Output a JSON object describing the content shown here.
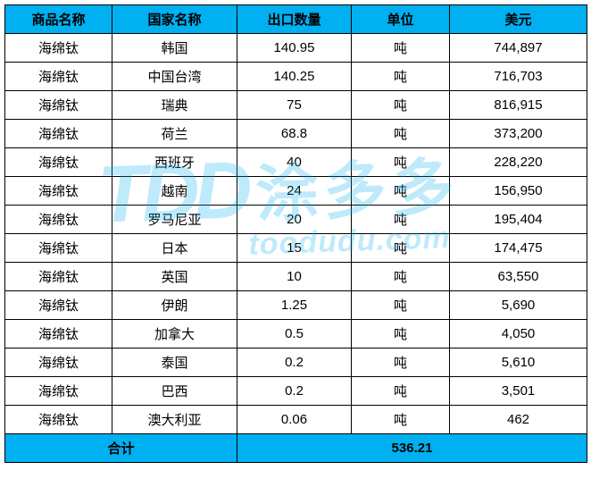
{
  "table": {
    "columns": [
      "商品名称",
      "国家名称",
      "出口数量",
      "单位",
      "美元"
    ],
    "rows": [
      [
        "海绵钛",
        "韩国",
        "140.95",
        "吨",
        "744,897"
      ],
      [
        "海绵钛",
        "中国台湾",
        "140.25",
        "吨",
        "716,703"
      ],
      [
        "海绵钛",
        "瑞典",
        "75",
        "吨",
        "816,915"
      ],
      [
        "海绵钛",
        "荷兰",
        "68.8",
        "吨",
        "373,200"
      ],
      [
        "海绵钛",
        "西班牙",
        "40",
        "吨",
        "228,220"
      ],
      [
        "海绵钛",
        "越南",
        "24",
        "吨",
        "156,950"
      ],
      [
        "海绵钛",
        "罗马尼亚",
        "20",
        "吨",
        "195,404"
      ],
      [
        "海绵钛",
        "日本",
        "15",
        "吨",
        "174,475"
      ],
      [
        "海绵钛",
        "英国",
        "10",
        "吨",
        "63,550"
      ],
      [
        "海绵钛",
        "伊朗",
        "1.25",
        "吨",
        "5,690"
      ],
      [
        "海绵钛",
        "加拿大",
        "0.5",
        "吨",
        "4,050"
      ],
      [
        "海绵钛",
        "泰国",
        "0.2",
        "吨",
        "5,610"
      ],
      [
        "海绵钛",
        "巴西",
        "0.2",
        "吨",
        "3,501"
      ],
      [
        "海绵钛",
        "澳大利亚",
        "0.06",
        "吨",
        "462"
      ]
    ],
    "footer": {
      "label": "合计",
      "total": "536.21"
    },
    "header_bg": "#00b0f0",
    "border_color": "#000000"
  },
  "watermark": {
    "logo": "TDD",
    "cn": "涂多多",
    "url": "toodudu.com"
  }
}
